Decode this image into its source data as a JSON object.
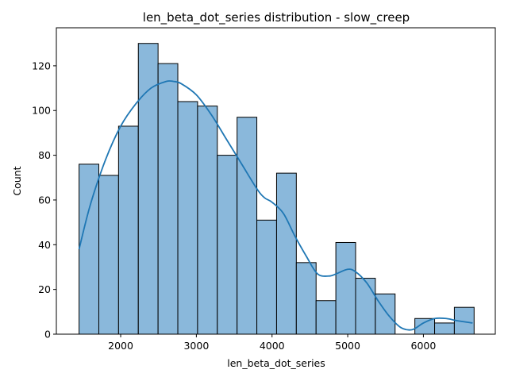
{
  "chart_data": {
    "type": "bar",
    "title": "len_beta_dot_series distribution - slow_creep",
    "xlabel": "len_beta_dot_series",
    "ylabel": "Count",
    "xlim": [
      1150,
      6950
    ],
    "ylim": [
      0,
      137
    ],
    "xticks": [
      2000,
      3000,
      4000,
      5000,
      6000
    ],
    "yticks": [
      0,
      20,
      40,
      60,
      80,
      100,
      120
    ],
    "grid": false,
    "bar_color": "#8ab8db",
    "edge_color": "#000000",
    "kde_color": "#1f77b4",
    "bins": [
      {
        "x0": 1450,
        "x1": 1711,
        "count": 76
      },
      {
        "x0": 1711,
        "x1": 1972,
        "count": 71
      },
      {
        "x0": 1972,
        "x1": 2233,
        "count": 93
      },
      {
        "x0": 2233,
        "x1": 2494,
        "count": 130
      },
      {
        "x0": 2494,
        "x1": 2755,
        "count": 121
      },
      {
        "x0": 2755,
        "x1": 3016,
        "count": 104
      },
      {
        "x0": 3016,
        "x1": 3277,
        "count": 102
      },
      {
        "x0": 3277,
        "x1": 3538,
        "count": 80
      },
      {
        "x0": 3538,
        "x1": 3799,
        "count": 97
      },
      {
        "x0": 3799,
        "x1": 4060,
        "count": 51
      },
      {
        "x0": 4060,
        "x1": 4321,
        "count": 72
      },
      {
        "x0": 4321,
        "x1": 4582,
        "count": 32
      },
      {
        "x0": 4582,
        "x1": 4843,
        "count": 15
      },
      {
        "x0": 4843,
        "x1": 5104,
        "count": 41
      },
      {
        "x0": 5104,
        "x1": 5365,
        "count": 25
      },
      {
        "x0": 5365,
        "x1": 5626,
        "count": 18
      },
      {
        "x0": 5626,
        "x1": 5887,
        "count": 0
      },
      {
        "x0": 5887,
        "x1": 6148,
        "count": 7
      },
      {
        "x0": 6148,
        "x1": 6409,
        "count": 5
      },
      {
        "x0": 6409,
        "x1": 6670,
        "count": 12
      }
    ],
    "kde": {
      "x": [
        1450,
        1600,
        1800,
        2000,
        2200,
        2400,
        2600,
        2700,
        2800,
        3000,
        3200,
        3400,
        3600,
        3800,
        3900,
        4000,
        4150,
        4300,
        4450,
        4600,
        4750,
        4850,
        5000,
        5100,
        5250,
        5400,
        5550,
        5700,
        5850,
        6000,
        6150,
        6300,
        6450,
        6650
      ],
      "y": [
        38,
        58,
        78,
        93,
        103,
        110,
        113,
        113,
        112,
        107,
        98,
        87,
        76,
        65,
        61,
        59,
        54,
        44,
        35,
        27,
        26,
        27,
        29,
        28,
        23,
        15,
        8,
        3,
        2,
        5,
        7,
        7,
        6,
        5
      ]
    }
  }
}
